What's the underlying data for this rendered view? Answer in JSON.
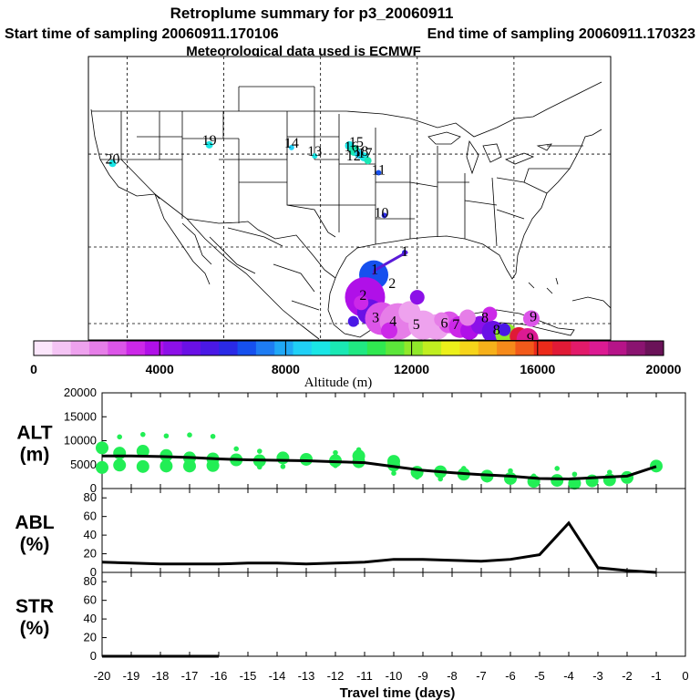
{
  "header": {
    "title": "Retroplume summary for p3_20060911",
    "start_label": "Start time of sampling 20060911.170106",
    "end_label": "End time of sampling 20060911.170323",
    "met_label": "Meteorological data used is ECMWF"
  },
  "colors": {
    "alt_marker": "#22ee55",
    "map_track": "#5a1ad8",
    "scale": [
      "#fbe6fb",
      "#f4c4f4",
      "#eea2ee",
      "#e67ee8",
      "#dc55e8",
      "#cc28e8",
      "#b010e8",
      "#8c10e8",
      "#6a10e6",
      "#4a18e6",
      "#2a2ae6",
      "#1650ee",
      "#1e7cf2",
      "#20a8f6",
      "#20d0f6",
      "#1ae6e6",
      "#1ae8b4",
      "#20e882",
      "#30e850",
      "#5ce63a",
      "#90e82a",
      "#c0ee20",
      "#ecf01a",
      "#f6d41a",
      "#f6b01a",
      "#f68a1a",
      "#f25a1a",
      "#ec2a1a",
      "#e01a36",
      "#e21a6a",
      "#dc1a92",
      "#b61488",
      "#8a1470",
      "#6a1258"
    ]
  },
  "map": {
    "labels": [
      {
        "text": "20",
        "lon": -121.5,
        "lat": 39.0
      },
      {
        "text": "19",
        "lon": -111.5,
        "lat": 41.0
      },
      {
        "text": "14",
        "lon": -103.0,
        "lat": 40.7
      },
      {
        "text": "13",
        "lon": -100.6,
        "lat": 39.8
      },
      {
        "text": "16",
        "lon": -96.8,
        "lat": 40.3
      },
      {
        "text": "15",
        "lon": -96.3,
        "lat": 40.8
      },
      {
        "text": "18",
        "lon": -95.8,
        "lat": 39.8
      },
      {
        "text": "17",
        "lon": -95.4,
        "lat": 39.6
      },
      {
        "text": "12",
        "lon": -96.6,
        "lat": 39.3
      },
      {
        "text": "11",
        "lon": -94.0,
        "lat": 37.8
      },
      {
        "text": "10",
        "lon": -93.7,
        "lat": 33.2
      },
      {
        "text": "1",
        "lon": -91.3,
        "lat": 29.0
      },
      {
        "text": "1",
        "lon": -94.4,
        "lat": 27.1
      },
      {
        "text": "2",
        "lon": -92.6,
        "lat": 25.6
      },
      {
        "text": "2",
        "lon": -95.6,
        "lat": 24.3
      },
      {
        "text": "3",
        "lon": -94.3,
        "lat": 21.9
      },
      {
        "text": "4",
        "lon": -92.5,
        "lat": 21.5
      },
      {
        "text": "5",
        "lon": -90.1,
        "lat": 21.2
      },
      {
        "text": "6",
        "lon": -87.2,
        "lat": 21.3
      },
      {
        "text": "7",
        "lon": -86.0,
        "lat": 21.2
      },
      {
        "text": "8",
        "lon": -83.0,
        "lat": 21.9
      },
      {
        "text": "8",
        "lon": -81.8,
        "lat": 20.6
      },
      {
        "text": "9",
        "lon": -78.0,
        "lat": 22.0
      },
      {
        "text": "9",
        "lon": -78.3,
        "lat": 19.7
      }
    ]
  },
  "colorbar": {
    "tick_labels": [
      "0",
      "4000",
      "8000",
      "12000",
      "16000",
      "20000"
    ],
    "xlabel": "Altitude (m)"
  },
  "chart_data": [
    {
      "type": "line",
      "panel": "ALT",
      "ylabel": "ALT\n(m)",
      "ylabel_line1": "ALT",
      "ylabel_line2": "(m)",
      "ylim": [
        0,
        20000
      ],
      "yticks": [
        "0",
        "5000",
        "10000",
        "15000",
        "20000"
      ],
      "x": [
        -20,
        -19,
        -18,
        -17,
        -16,
        -15,
        -14,
        -13,
        -12,
        -11,
        -10,
        -9,
        -8,
        -7,
        -6,
        -5,
        -4,
        -3,
        -2,
        -1
      ],
      "median": [
        6800,
        6800,
        6700,
        6500,
        6200,
        6000,
        5900,
        5800,
        5600,
        5400,
        4600,
        3800,
        3300,
        2900,
        2600,
        2100,
        2000,
        2300,
        2600,
        4600
      ],
      "marker_large": [
        [
          -20,
          8500
        ],
        [
          -20,
          4400
        ],
        [
          -19.4,
          7400
        ],
        [
          -19.4,
          4900
        ],
        [
          -18.6,
          7800
        ],
        [
          -18.6,
          4600
        ],
        [
          -17.8,
          6900
        ],
        [
          -17.8,
          4700
        ],
        [
          -17.0,
          6400
        ],
        [
          -17.0,
          4700
        ],
        [
          -16.2,
          6200
        ],
        [
          -16.2,
          4800
        ],
        [
          -15.4,
          6000
        ],
        [
          -14.6,
          5800
        ],
        [
          -13.8,
          6400
        ],
        [
          -13.0,
          6100
        ],
        [
          -12.0,
          5800
        ],
        [
          -11.2,
          5600
        ],
        [
          -11.2,
          6800
        ],
        [
          -10.0,
          5700
        ],
        [
          -10.0,
          4900
        ],
        [
          -9.2,
          3400
        ],
        [
          -8.4,
          3500
        ],
        [
          -7.6,
          3000
        ],
        [
          -6.8,
          2600
        ],
        [
          -6.0,
          2100
        ],
        [
          -5.2,
          1500
        ],
        [
          -4.4,
          1700
        ],
        [
          -3.8,
          1100
        ],
        [
          -3.2,
          1600
        ],
        [
          -2.6,
          1800
        ],
        [
          -2.0,
          2300
        ],
        [
          -1.0,
          4700
        ]
      ],
      "marker_small": [
        [
          -19.4,
          10800
        ],
        [
          -18.6,
          11300
        ],
        [
          -17.8,
          11000
        ],
        [
          -17.0,
          11200
        ],
        [
          -16.2,
          10900
        ],
        [
          -15.4,
          8300
        ],
        [
          -14.6,
          7800
        ],
        [
          -14.6,
          4500
        ],
        [
          -13.8,
          4600
        ],
        [
          -12.0,
          7500
        ],
        [
          -12.0,
          4800
        ],
        [
          -11.2,
          8100
        ],
        [
          -10.0,
          3200
        ],
        [
          -9.2,
          2400
        ],
        [
          -8.4,
          2000
        ],
        [
          -7.6,
          4200
        ],
        [
          -6.8,
          1800
        ],
        [
          -6.0,
          3700
        ],
        [
          -5.2,
          2600
        ],
        [
          -4.4,
          4200
        ],
        [
          -3.8,
          3000
        ],
        [
          -2.6,
          3400
        ]
      ]
    },
    {
      "type": "line",
      "panel": "ABL",
      "ylabel_line1": "ABL",
      "ylabel_line2": "(%)",
      "ylim": [
        0,
        90
      ],
      "yticks": [
        "0",
        "20",
        "40",
        "60",
        "80"
      ],
      "x": [
        -20,
        -19,
        -18,
        -17,
        -16,
        -15,
        -14,
        -13,
        -12,
        -11,
        -10,
        -9,
        -8,
        -7,
        -6,
        -5,
        -4,
        -3,
        -2,
        -1
      ],
      "values": [
        11,
        10,
        9,
        9,
        9,
        10,
        10,
        9,
        10,
        11,
        14,
        14,
        13,
        12,
        14,
        19,
        53,
        5,
        2,
        0
      ]
    },
    {
      "type": "line",
      "panel": "STR",
      "ylabel_line1": "STR",
      "ylabel_line2": "(%)",
      "ylim": [
        0,
        90
      ],
      "yticks": [
        "0",
        "20",
        "40",
        "60",
        "80"
      ],
      "x": [
        -20,
        -19,
        -18,
        -17,
        -16
      ],
      "values": [
        0,
        0,
        0,
        0,
        0
      ]
    }
  ],
  "xaxis": {
    "ticks": [
      -20,
      -19,
      -18,
      -17,
      -16,
      -15,
      -14,
      -13,
      -12,
      -11,
      -10,
      -9,
      -8,
      -7,
      -6,
      -5,
      -4,
      -3,
      -2,
      -1,
      0
    ],
    "tick_labels": [
      "-20",
      "-19",
      "-18",
      "-17",
      "-16",
      "-15",
      "-14",
      "-13",
      "-12",
      "-11",
      "-10",
      "-9",
      "-8",
      "-7",
      "-6",
      "-5",
      "-4",
      "-3",
      "-2",
      "-1",
      "0"
    ],
    "xlabel": "Travel time (days)"
  }
}
